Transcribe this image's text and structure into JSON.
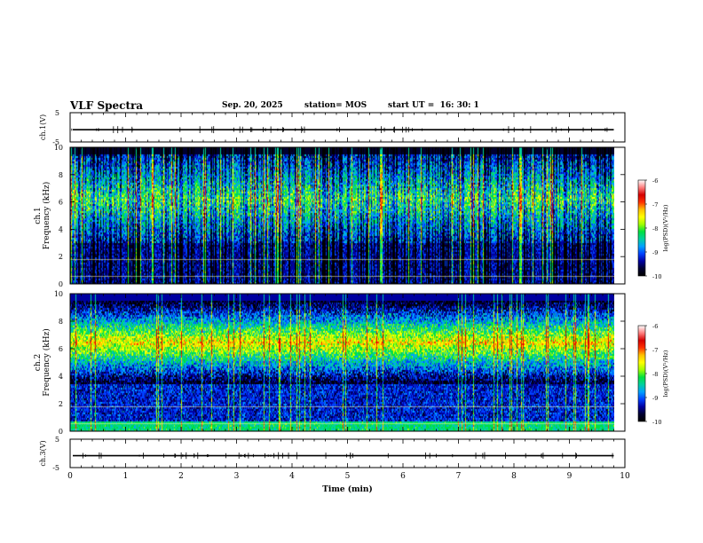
{
  "header": {
    "title": "VLF Spectra",
    "date": "Sep. 20, 2025",
    "station": "station= MOS",
    "start_label": "start  UT =",
    "start_time": "16: 30: 1"
  },
  "colors": {
    "colormap": [
      "#ffffff",
      "#ff8080",
      "#d40000",
      "#ff3000",
      "#ffc000",
      "#ffff00",
      "#a0ff00",
      "#00e040",
      "#00d0a0",
      "#00a0ff",
      "#0040ff",
      "#0000a0",
      "#000030",
      "#000000"
    ]
  },
  "chart_data": [
    {
      "type": "line",
      "name": "ch1-waveform",
      "ylabel": "ch.1(V)",
      "ylim": [
        -5,
        5
      ],
      "y_ticks": [
        "5",
        "-5"
      ],
      "y_level": -0.8,
      "x_range": [
        0,
        9.8
      ]
    },
    {
      "type": "heatmap",
      "name": "ch1-spectrogram",
      "ylabel_top": "ch.1",
      "ylabel": "Frequency (kHz)",
      "ylim": [
        0,
        10
      ],
      "y_ticks": [
        "0",
        "2",
        "4",
        "6",
        "8",
        "10"
      ],
      "x_range": [
        0,
        9.8
      ],
      "dominant_band_khz": [
        3,
        9.5
      ],
      "colorbar": {
        "label": "log(PSD)(V²/Hz)",
        "ticks": [
          "-6",
          "-7",
          "-8",
          "-9",
          "-10"
        ],
        "range": [
          -10,
          -6
        ]
      }
    },
    {
      "type": "heatmap",
      "name": "ch2-spectrogram",
      "ylabel_top": "ch.2",
      "ylabel": "Frequency (kHz)",
      "ylim": [
        0,
        10
      ],
      "y_ticks": [
        "0",
        "2",
        "4",
        "6",
        "8",
        "10"
      ],
      "x_range": [
        0,
        9.8
      ],
      "dominant_band_khz": [
        5,
        8
      ],
      "colorbar": {
        "label": "log(PSD)(V²/Hz)",
        "ticks": [
          "-6",
          "-7",
          "-8",
          "-9",
          "-10"
        ],
        "range": [
          -10,
          -6
        ]
      }
    },
    {
      "type": "line",
      "name": "ch3-waveform",
      "ylabel": "ch.3(V)",
      "ylim": [
        -5,
        5
      ],
      "y_ticks": [
        "5",
        "-5"
      ],
      "y_level": -0.8,
      "x_range": [
        0,
        9.8
      ],
      "xlabel": "Time (min)",
      "xlim": [
        0,
        10
      ],
      "x_ticks": [
        "0",
        "1",
        "2",
        "3",
        "4",
        "5",
        "6",
        "7",
        "8",
        "9",
        "10"
      ]
    }
  ]
}
